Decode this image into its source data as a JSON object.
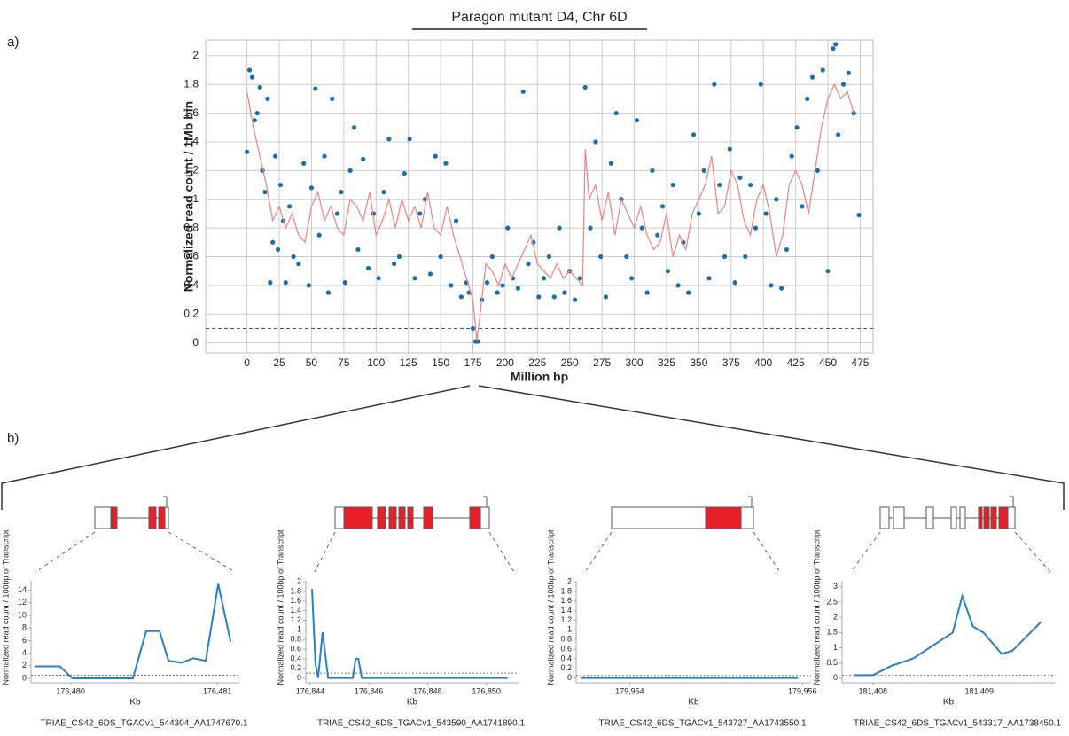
{
  "chart_data": [
    {
      "type": "scatter",
      "panel": "a)",
      "title": "Paragon mutant D4, Chr 6D",
      "xlabel": "Million bp",
      "ylabel": "Normalized read count / 1Mb bin",
      "xlim": [
        -32,
        485
      ],
      "ylim": [
        -0.07,
        2.11
      ],
      "xticks": [
        0,
        25,
        50,
        75,
        100,
        125,
        150,
        175,
        200,
        225,
        250,
        275,
        300,
        325,
        350,
        375,
        400,
        425,
        450,
        475
      ],
      "yticks": [
        0,
        0.2,
        0.4,
        0.6,
        0.8,
        1,
        1.2,
        1.4,
        1.6,
        1.8,
        2
      ],
      "grid": true,
      "reference_line": 0.1,
      "points": {
        "color": "#1a6fa8",
        "x": [
          0,
          2,
          4,
          6,
          8,
          10,
          12,
          14,
          16,
          18,
          20,
          22,
          24,
          26,
          28,
          30,
          33,
          36,
          40,
          44,
          48,
          50,
          53,
          56,
          60,
          63,
          66,
          70,
          73,
          76,
          80,
          83,
          86,
          90,
          94,
          98,
          102,
          106,
          110,
          114,
          118,
          122,
          126,
          130,
          134,
          138,
          142,
          146,
          150,
          154,
          158,
          162,
          166,
          170,
          172,
          175,
          177,
          179,
          182,
          186,
          190,
          194,
          198,
          202,
          206,
          210,
          214,
          218,
          222,
          226,
          230,
          234,
          238,
          242,
          246,
          250,
          254,
          258,
          262,
          266,
          270,
          274,
          278,
          282,
          286,
          290,
          294,
          298,
          302,
          306,
          310,
          314,
          318,
          322,
          326,
          330,
          334,
          338,
          342,
          346,
          350,
          354,
          358,
          362,
          366,
          370,
          374,
          378,
          382,
          386,
          390,
          394,
          398,
          402,
          406,
          410,
          414,
          418,
          422,
          426,
          430,
          434,
          438,
          442,
          446,
          450,
          454,
          456,
          458,
          462,
          466,
          470,
          474
        ],
        "y": [
          1.33,
          1.9,
          1.85,
          1.55,
          1.6,
          1.78,
          1.2,
          1.05,
          1.7,
          0.42,
          0.7,
          1.3,
          0.65,
          1.1,
          0.85,
          0.42,
          0.95,
          0.6,
          0.55,
          1.25,
          0.4,
          1.08,
          1.77,
          0.75,
          1.3,
          0.35,
          1.7,
          0.9,
          1.05,
          0.42,
          1.2,
          1.5,
          0.65,
          1.28,
          0.52,
          0.9,
          0.45,
          1.05,
          1.42,
          0.55,
          0.6,
          1.18,
          1.42,
          0.45,
          0.9,
          1.0,
          0.48,
          1.3,
          0.6,
          1.25,
          0.4,
          0.85,
          0.32,
          0.42,
          0.35,
          0.1,
          0.01,
          0.01,
          0.3,
          0.42,
          0.6,
          0.35,
          0.4,
          0.8,
          0.45,
          0.38,
          1.75,
          0.55,
          0.7,
          0.32,
          0.45,
          0.6,
          0.32,
          0.8,
          0.35,
          0.5,
          0.3,
          0.45,
          1.78,
          0.8,
          1.4,
          0.6,
          0.32,
          1.25,
          1.6,
          1.0,
          0.6,
          0.45,
          1.55,
          0.8,
          0.35,
          1.2,
          0.75,
          0.95,
          0.5,
          1.1,
          0.4,
          0.7,
          0.35,
          1.45,
          0.9,
          1.2,
          0.45,
          1.8,
          1.1,
          0.6,
          1.35,
          0.42,
          1.15,
          0.6,
          1.1,
          0.8,
          1.8,
          0.9,
          0.4,
          1.0,
          0.38,
          0.65,
          1.3,
          1.5,
          0.95,
          1.7,
          1.85,
          1.2,
          1.9,
          0.5,
          2.05,
          2.08,
          1.45,
          1.8,
          1.88,
          1.6,
          0.89
        ]
      },
      "trend": {
        "color": "#f08080",
        "x": [
          0,
          5,
          10,
          15,
          20,
          25,
          30,
          35,
          40,
          45,
          50,
          55,
          60,
          65,
          70,
          75,
          80,
          85,
          90,
          95,
          100,
          105,
          110,
          115,
          120,
          125,
          130,
          135,
          140,
          145,
          150,
          155,
          160,
          165,
          170,
          175,
          178,
          180,
          185,
          190,
          195,
          200,
          205,
          210,
          215,
          220,
          225,
          230,
          235,
          240,
          245,
          250,
          255,
          260,
          262,
          265,
          270,
          275,
          280,
          285,
          290,
          295,
          300,
          305,
          310,
          315,
          320,
          325,
          330,
          335,
          340,
          345,
          350,
          355,
          360,
          365,
          370,
          375,
          380,
          385,
          390,
          395,
          400,
          405,
          410,
          415,
          420,
          425,
          430,
          435,
          440,
          445,
          450,
          455,
          460,
          465,
          470
        ],
        "y": [
          1.75,
          1.5,
          1.3,
          1.1,
          0.85,
          0.95,
          0.8,
          0.9,
          0.75,
          0.7,
          0.95,
          1.05,
          0.85,
          0.95,
          0.8,
          0.75,
          1.0,
          0.95,
          0.85,
          1.05,
          0.75,
          0.85,
          1.0,
          0.8,
          1.0,
          0.85,
          0.95,
          0.8,
          1.05,
          0.8,
          0.75,
          0.95,
          0.75,
          0.6,
          0.45,
          0.3,
          0.02,
          0.15,
          0.55,
          0.5,
          0.4,
          0.55,
          0.45,
          0.55,
          0.65,
          0.75,
          0.55,
          0.5,
          0.45,
          0.55,
          0.45,
          0.5,
          0.45,
          0.4,
          1.35,
          1.0,
          1.1,
          0.85,
          1.05,
          0.75,
          1.0,
          0.9,
          0.8,
          0.95,
          0.75,
          0.65,
          0.7,
          0.9,
          0.6,
          0.75,
          0.65,
          0.9,
          1.0,
          1.1,
          1.3,
          0.9,
          0.95,
          1.2,
          1.1,
          0.85,
          0.75,
          1.0,
          1.1,
          0.9,
          0.6,
          0.75,
          1.1,
          1.2,
          1.1,
          0.9,
          1.2,
          1.5,
          1.7,
          1.8,
          1.7,
          1.75,
          1.6
        ]
      }
    },
    {
      "type": "line",
      "panel": "b)",
      "gene": "TRIAE_CS42_6DS_TGACv1_544304_AA1747670.1",
      "xlabel": "Kb",
      "ylabel": "Normalized read count / 100bp of Transcript",
      "color": "#2a7fc0",
      "xlim": [
        176479.73,
        176481.15
      ],
      "ylim": [
        -0.7,
        15.5
      ],
      "reference_line": 0.5,
      "xticks": [
        {
          "value": 176480,
          "label": "176,480"
        },
        {
          "value": 176481,
          "label": "176,481"
        }
      ],
      "yticks": [
        0,
        2,
        4,
        6,
        8,
        10,
        12,
        14
      ],
      "x": [
        176479.758,
        176479.927,
        176480.012,
        176480.424,
        176480.515,
        176480.606,
        176480.667,
        176480.758,
        176480.836,
        176480.921,
        176481.006,
        176481.091
      ],
      "values": [
        1.9,
        1.9,
        0,
        0,
        7.5,
        7.5,
        2.8,
        2.5,
        3.2,
        2.8,
        15,
        5.8
      ]
    },
    {
      "type": "line",
      "gene": "TRIAE_CS42_6DS_TGACv1_543590_AA1741890.1",
      "xlabel": "Kb",
      "ylabel": "Normalized read count / 100bp of Transcript",
      "color": "#2a7fc0",
      "xlim": [
        176843.85,
        176851.1
      ],
      "ylim": [
        -0.1,
        2.02
      ],
      "reference_line": 0.1,
      "xticks": [
        {
          "value": 176844,
          "label": "176,844"
        },
        {
          "value": 176846,
          "label": "176,846"
        },
        {
          "value": 176848,
          "label": "176,848"
        },
        {
          "value": 176850,
          "label": "176,850"
        }
      ],
      "yticks": [
        0,
        0.2,
        0.4,
        0.6,
        0.8,
        1,
        1.2,
        1.4,
        1.6,
        1.8,
        2
      ],
      "x": [
        176844.06,
        176844.18,
        176844.27,
        176844.42,
        176844.61,
        176845.45,
        176845.55,
        176845.64,
        176845.76,
        176850.73
      ],
      "values": [
        1.85,
        0.3,
        0,
        0.95,
        0,
        0,
        0.4,
        0.4,
        0,
        0
      ]
    },
    {
      "type": "line",
      "gene": "TRIAE_CS42_6DS_TGACv1_543727_AA1743550.1",
      "xlabel": "Kb",
      "ylabel": "Normalized read count / 100bp of Transcript",
      "color": "#2a7fc0",
      "xlim": [
        179953.38,
        179956.1
      ],
      "ylim": [
        -0.1,
        2.02
      ],
      "reference_line": 0.05,
      "xticks": [
        {
          "value": 179954,
          "label": "179,954"
        },
        {
          "value": 179956,
          "label": "179,956"
        }
      ],
      "yticks": [
        0,
        0.2,
        0.4,
        0.6,
        0.8,
        1,
        1.2,
        1.4,
        1.6,
        1.8,
        2
      ],
      "x": [
        179953.44,
        179955.95
      ],
      "values": [
        0,
        0
      ]
    },
    {
      "type": "line",
      "gene": "TRIAE_CS42_6DS_TGACv1_543317_AA1738450.1",
      "xlabel": "Kb",
      "ylabel": "Normalized read count / 100bp of Transcript",
      "color": "#2a7fc0",
      "xlim": [
        181407.71,
        181409.71
      ],
      "ylim": [
        -0.15,
        3.2
      ],
      "reference_line": 0.1,
      "xticks": [
        {
          "value": 181408,
          "label": "181,408"
        },
        {
          "value": 181409,
          "label": "181,409"
        }
      ],
      "yticks": [
        0,
        0.5,
        1,
        1.5,
        2,
        2.5,
        3
      ],
      "x": [
        181407.83,
        181408.0,
        181408.17,
        181408.38,
        181408.75,
        181408.84,
        181408.94,
        181409.04,
        181409.21,
        181409.31,
        181409.58
      ],
      "values": [
        0.1,
        0.1,
        0.4,
        0.65,
        1.5,
        2.7,
        1.7,
        1.5,
        0.8,
        0.9,
        1.85
      ]
    }
  ]
}
